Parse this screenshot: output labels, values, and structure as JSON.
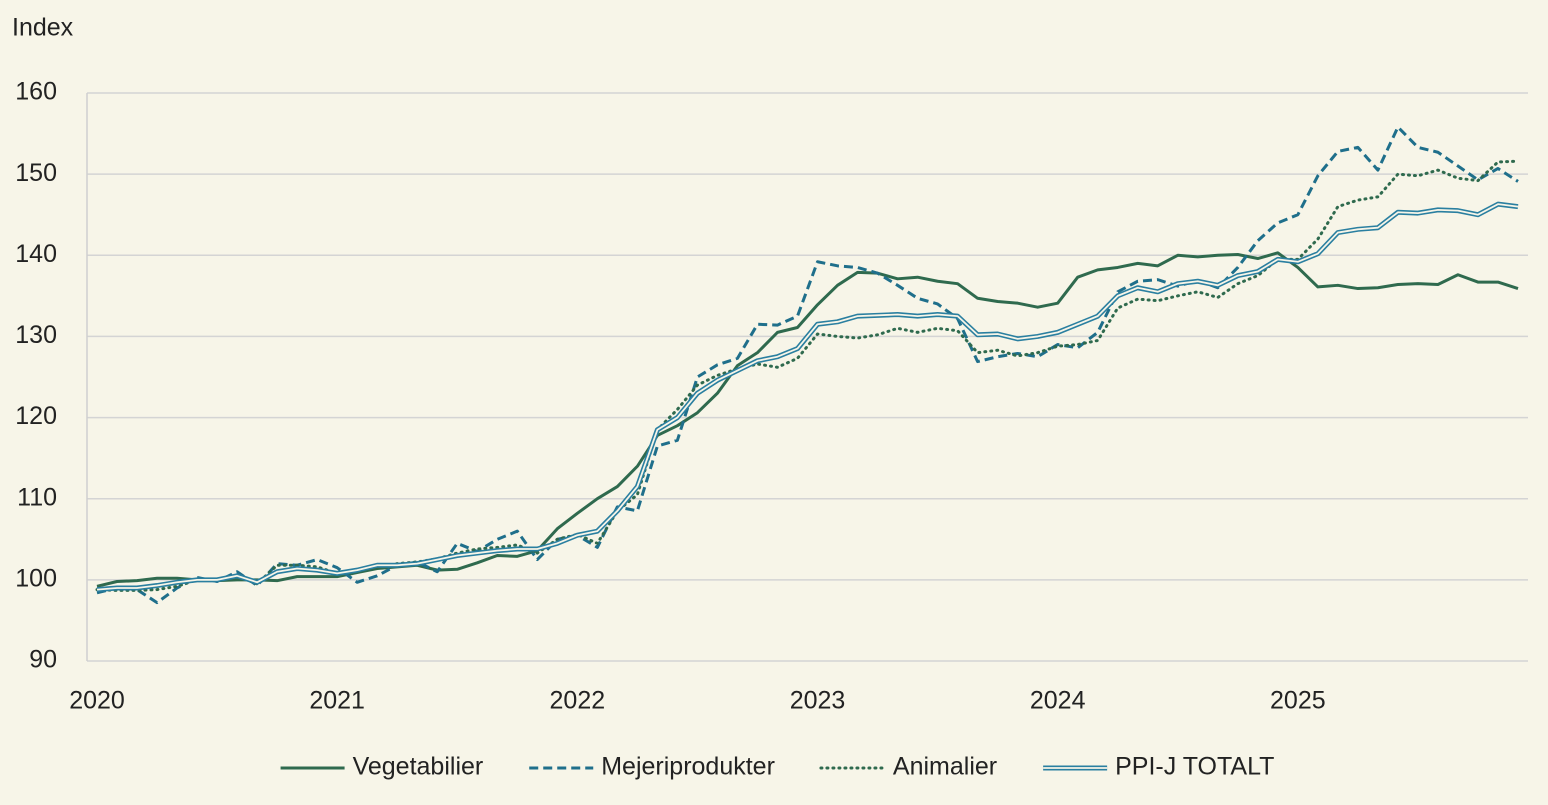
{
  "chart_data": {
    "type": "line",
    "y_label": "Index",
    "categories": [
      "2020",
      null,
      null,
      null,
      null,
      null,
      null,
      null,
      null,
      null,
      null,
      null,
      "2021",
      null,
      null,
      null,
      null,
      null,
      null,
      null,
      null,
      null,
      null,
      null,
      "2022",
      null,
      null,
      null,
      null,
      null,
      null,
      null,
      null,
      null,
      null,
      null,
      "2023",
      null,
      null,
      null,
      null,
      null,
      null,
      null,
      null,
      null,
      null,
      null,
      "2024",
      null,
      null,
      null,
      null,
      null,
      null,
      null,
      null,
      null,
      null,
      null,
      "2025",
      null,
      null,
      null,
      null,
      null,
      null,
      null,
      null,
      null,
      null,
      null
    ],
    "ylim": [
      90,
      160
    ],
    "yticks": [
      90,
      100,
      110,
      120,
      130,
      140,
      150,
      160
    ],
    "grid": true,
    "legend": "bottom",
    "series": [
      {
        "name": "Vegetabilier",
        "color": "#2f6a4e",
        "style": "solid",
        "values": [
          99.2,
          99.8,
          99.9,
          100.2,
          100.2,
          100,
          99.9,
          100,
          100,
          99.9,
          100.4,
          100.4,
          100.4,
          100.9,
          101.4,
          101.6,
          101.8,
          101.2,
          101.3,
          102.1,
          103,
          102.9,
          103.6,
          106.3,
          108.2,
          110,
          111.5,
          114,
          117.8,
          119,
          120.6,
          123,
          126.4,
          128,
          130.5,
          131.1,
          133.9,
          136.3,
          137.9,
          137.8,
          137.1,
          137.3,
          136.8,
          136.5,
          134.7,
          134.3,
          134.1,
          133.6,
          134.1,
          137.3,
          138.2,
          138.5,
          139,
          138.7,
          140,
          139.8,
          140,
          140.1,
          139.6,
          140.3,
          138.5,
          136.1,
          136.3,
          135.9,
          136,
          136.4,
          136.5,
          136.4,
          137.6,
          136.7,
          136.7,
          135.9
        ]
      },
      {
        "name": "Mejeriprodukter",
        "color": "#1f6f8b",
        "style": "dashed",
        "values": [
          98.4,
          99,
          98.8,
          97.2,
          99,
          100.3,
          99.8,
          101,
          99.3,
          102,
          101.8,
          102.5,
          101.5,
          99.7,
          100.5,
          101.8,
          102.2,
          101,
          104.5,
          103.5,
          105,
          106,
          102.5,
          105,
          105.5,
          104,
          109,
          108.5,
          116.5,
          117.2,
          125,
          126.5,
          127.3,
          131.5,
          131.4,
          132.5,
          139.2,
          138.7,
          138.5,
          137.8,
          136.3,
          134.7,
          134,
          132.2,
          126.9,
          127.5,
          127.9,
          127.5,
          129,
          128.6,
          130.5,
          135.5,
          136.8,
          137,
          136.2,
          136.9,
          136,
          138.5,
          141.8,
          144,
          145,
          149.8,
          152.8,
          153.3,
          150.5,
          155.8,
          153.3,
          152.7,
          151,
          149.3,
          150.7,
          149.1
        ]
      },
      {
        "name": "Animalier",
        "color": "#2f6a4e",
        "style": "dotted",
        "values": [
          98.8,
          98.7,
          98.7,
          98.8,
          99.2,
          100,
          100,
          100.5,
          99.5,
          101.8,
          101.8,
          101.6,
          100.8,
          101.3,
          101.5,
          102,
          102.2,
          102.6,
          103.3,
          103.8,
          104,
          104.3,
          103.3,
          105,
          105.6,
          104.5,
          108.5,
          110.5,
          118.5,
          121,
          124,
          125.2,
          126,
          126.6,
          126.2,
          127.3,
          130.3,
          130,
          129.8,
          130.2,
          131,
          130.5,
          131,
          130.7,
          128,
          128.3,
          127.6,
          128,
          128.8,
          129,
          129.5,
          133.5,
          134.6,
          134.4,
          135,
          135.5,
          134.8,
          136.5,
          137.5,
          139.5,
          139.5,
          142,
          146,
          146.8,
          147.2,
          150,
          149.8,
          150.5,
          149.5,
          149.2,
          151.5,
          151.6
        ]
      },
      {
        "name": "PPI-J TOTALT",
        "color": "#2a7fa0",
        "style": "double",
        "values": [
          98.8,
          99,
          99,
          99.3,
          99.7,
          100,
          100,
          100.5,
          99.7,
          101,
          101.4,
          101.2,
          100.8,
          101.2,
          101.8,
          101.8,
          102,
          102.5,
          103,
          103.3,
          103.6,
          103.8,
          103.8,
          104.5,
          105.5,
          106,
          108.5,
          111.5,
          118.5,
          120,
          123,
          124.6,
          125.8,
          127,
          127.5,
          128.5,
          131.5,
          131.8,
          132.5,
          132.6,
          132.7,
          132.5,
          132.7,
          132.5,
          130.2,
          130.3,
          129.7,
          130,
          130.5,
          131.5,
          132.5,
          135,
          136,
          135.5,
          136.5,
          136.8,
          136.3,
          137.5,
          138,
          139.5,
          139.2,
          140.2,
          142.8,
          143.2,
          143.4,
          145.3,
          145.2,
          145.6,
          145.5,
          145,
          146.3,
          146
        ]
      }
    ]
  }
}
